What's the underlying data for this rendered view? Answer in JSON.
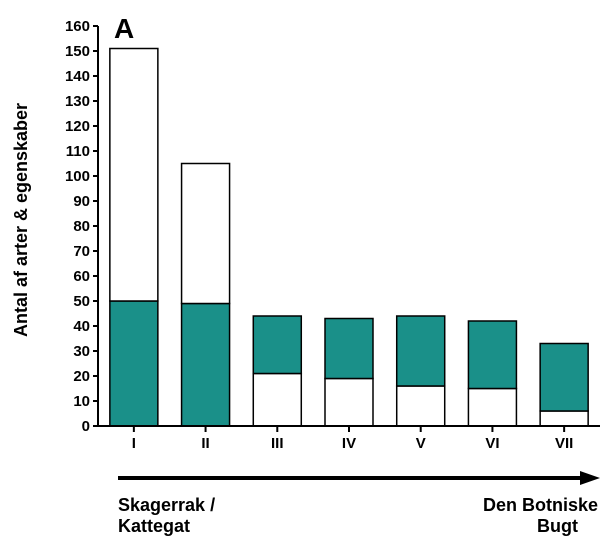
{
  "chart_data": {
    "type": "bar",
    "stacked": true,
    "panel_label": "A",
    "ylabel": "Antal af arter & egenskaber",
    "xlabel": "",
    "ylim": [
      0,
      160
    ],
    "yticks": [
      0,
      10,
      20,
      30,
      40,
      50,
      60,
      70,
      80,
      90,
      100,
      110,
      120,
      130,
      140,
      150,
      160
    ],
    "categories": [
      "I",
      "II",
      "III",
      "IV",
      "V",
      "VI",
      "VII"
    ],
    "totals": [
      151,
      105,
      44,
      43,
      44,
      42,
      33
    ],
    "series": [
      {
        "fill": "#ffffff",
        "values": [
          101,
          56,
          21,
          19,
          16,
          15,
          6
        ]
      },
      {
        "fill": "#1a9089",
        "values": [
          50,
          49,
          23,
          24,
          28,
          27,
          27
        ]
      }
    ],
    "layer_order_per_bar": [
      "teal-bottom",
      "teal-bottom",
      "white-bottom",
      "white-bottom",
      "white-bottom",
      "white-bottom",
      "white-bottom"
    ],
    "grid": false,
    "legend": "none",
    "gradient_start_label": [
      "Skagerrak /",
      "Kattegat"
    ],
    "gradient_end_label": [
      "Den Botniske",
      "Bugt"
    ]
  }
}
